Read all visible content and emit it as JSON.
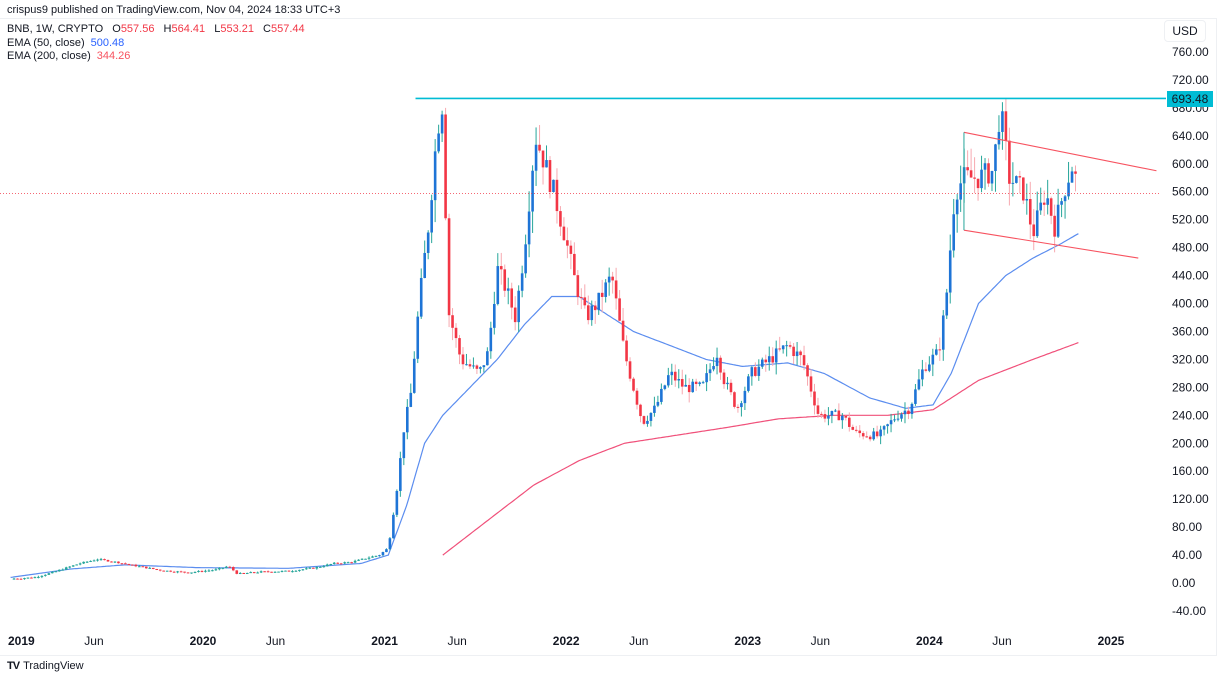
{
  "publisher": "crispus9 published on TradingView.com, Nov 04, 2024 18:33 UTC+3",
  "legend": {
    "symbol": "BNB, 1W, CRYPTO",
    "open_label": "O",
    "open": "557.56",
    "high_label": "H",
    "high": "564.41",
    "low_label": "L",
    "low": "553.21",
    "close_label": "C",
    "close": "557.44",
    "ema50_label": "EMA (50, close)",
    "ema50_value": "500.48",
    "ema200_label": "EMA (200, close)",
    "ema200_value": "344.26"
  },
  "currency": "USD",
  "resistance_badge": "693.48",
  "brand": {
    "logo": "TV",
    "name": "TradingView"
  },
  "colors": {
    "up_body": "#1e74d6",
    "up_body_early": "#26a69a",
    "up_wick": "#26a69a",
    "down_body": "#f23645",
    "down_wick": "#f7a9b0",
    "ema50": "#5b8def",
    "ema200": "#f0507a",
    "resistance": "#00bcd4",
    "channel": "#f7525f",
    "last_price_line": "#f23645"
  },
  "chart_data": {
    "type": "candlestick",
    "title": "BNB, 1W, CRYPTO",
    "xlabel": "",
    "ylabel": "USD",
    "ylim": [
      -60,
      790
    ],
    "y_ticks": [
      "760.00",
      "720.00",
      "680.00",
      "640.00",
      "600.00",
      "560.00",
      "520.00",
      "480.00",
      "440.00",
      "400.00",
      "360.00",
      "320.00",
      "280.00",
      "240.00",
      "200.00",
      "160.00",
      "120.00",
      "80.00",
      "40.00",
      "0.00",
      "-40.00"
    ],
    "x_ticks": [
      {
        "label": "2019",
        "year": true,
        "t": 2019.0
      },
      {
        "label": "Jun",
        "year": false,
        "t": 2019.42
      },
      {
        "label": "2020",
        "year": true,
        "t": 2020.0
      },
      {
        "label": "Jun",
        "year": false,
        "t": 2020.42
      },
      {
        "label": "2021",
        "year": true,
        "t": 2021.0
      },
      {
        "label": "Jun",
        "year": false,
        "t": 2021.42
      },
      {
        "label": "2022",
        "year": true,
        "t": 2022.0
      },
      {
        "label": "Jun",
        "year": false,
        "t": 2022.42
      },
      {
        "label": "2023",
        "year": true,
        "t": 2023.0
      },
      {
        "label": "Jun",
        "year": false,
        "t": 2023.42
      },
      {
        "label": "2024",
        "year": true,
        "t": 2024.0
      },
      {
        "label": "Jun",
        "year": false,
        "t": 2024.42
      },
      {
        "label": "2025",
        "year": true,
        "t": 2025.0
      }
    ],
    "price_path": [
      [
        2018.97,
        6
      ],
      [
        2019.1,
        8
      ],
      [
        2019.2,
        15
      ],
      [
        2019.35,
        28
      ],
      [
        2019.45,
        34
      ],
      [
        2019.55,
        30
      ],
      [
        2019.65,
        25
      ],
      [
        2019.8,
        18
      ],
      [
        2019.95,
        15
      ],
      [
        2020.1,
        19
      ],
      [
        2020.17,
        24
      ],
      [
        2020.22,
        13
      ],
      [
        2020.35,
        16
      ],
      [
        2020.5,
        17
      ],
      [
        2020.65,
        22
      ],
      [
        2020.75,
        28
      ],
      [
        2020.85,
        30
      ],
      [
        2020.95,
        37
      ],
      [
        2021.0,
        40
      ],
      [
        2021.05,
        50
      ],
      [
        2021.1,
        140
      ],
      [
        2021.14,
        230
      ],
      [
        2021.17,
        260
      ],
      [
        2021.22,
        400
      ],
      [
        2021.27,
        510
      ],
      [
        2021.32,
        650
      ],
      [
        2021.35,
        690
      ],
      [
        2021.38,
        390
      ],
      [
        2021.45,
        320
      ],
      [
        2021.55,
        300
      ],
      [
        2021.6,
        330
      ],
      [
        2021.65,
        450
      ],
      [
        2021.7,
        420
      ],
      [
        2021.75,
        380
      ],
      [
        2021.8,
        480
      ],
      [
        2021.86,
        640
      ],
      [
        2021.9,
        610
      ],
      [
        2021.96,
        560
      ],
      [
        2022.02,
        500
      ],
      [
        2022.08,
        430
      ],
      [
        2022.14,
        380
      ],
      [
        2022.2,
        400
      ],
      [
        2022.28,
        440
      ],
      [
        2022.35,
        330
      ],
      [
        2022.45,
        230
      ],
      [
        2022.52,
        250
      ],
      [
        2022.6,
        300
      ],
      [
        2022.68,
        280
      ],
      [
        2022.78,
        280
      ],
      [
        2022.86,
        330
      ],
      [
        2022.9,
        290
      ],
      [
        2022.97,
        250
      ],
      [
        2023.05,
        300
      ],
      [
        2023.15,
        320
      ],
      [
        2023.25,
        340
      ],
      [
        2023.33,
        320
      ],
      [
        2023.42,
        240
      ],
      [
        2023.55,
        240
      ],
      [
        2023.62,
        215
      ],
      [
        2023.75,
        210
      ],
      [
        2023.85,
        240
      ],
      [
        2023.92,
        250
      ],
      [
        2024.0,
        310
      ],
      [
        2024.08,
        330
      ],
      [
        2024.12,
        400
      ],
      [
        2024.17,
        560
      ],
      [
        2024.22,
        580
      ],
      [
        2024.3,
        580
      ],
      [
        2024.38,
        590
      ],
      [
        2024.42,
        680
      ],
      [
        2024.47,
        580
      ],
      [
        2024.55,
        560
      ],
      [
        2024.6,
        500
      ],
      [
        2024.67,
        560
      ],
      [
        2024.72,
        510
      ],
      [
        2024.78,
        570
      ],
      [
        2024.82,
        600
      ],
      [
        2024.85,
        557
      ]
    ],
    "ema50_path": [
      [
        2018.97,
        8
      ],
      [
        2019.3,
        20
      ],
      [
        2019.6,
        26
      ],
      [
        2020.0,
        22
      ],
      [
        2020.5,
        21
      ],
      [
        2020.9,
        28
      ],
      [
        2021.05,
        40
      ],
      [
        2021.15,
        110
      ],
      [
        2021.25,
        200
      ],
      [
        2021.35,
        240
      ],
      [
        2021.5,
        280
      ],
      [
        2021.65,
        320
      ],
      [
        2021.8,
        370
      ],
      [
        2021.95,
        410
      ],
      [
        2022.1,
        410
      ],
      [
        2022.25,
        385
      ],
      [
        2022.4,
        360
      ],
      [
        2022.6,
        340
      ],
      [
        2022.8,
        320
      ],
      [
        2023.0,
        310
      ],
      [
        2023.25,
        315
      ],
      [
        2023.45,
        300
      ],
      [
        2023.7,
        265
      ],
      [
        2023.9,
        250
      ],
      [
        2024.05,
        255
      ],
      [
        2024.15,
        300
      ],
      [
        2024.3,
        400
      ],
      [
        2024.45,
        440
      ],
      [
        2024.6,
        465
      ],
      [
        2024.75,
        485
      ],
      [
        2024.85,
        500
      ]
    ],
    "ema200_path": [
      [
        2021.35,
        40
      ],
      [
        2021.6,
        90
      ],
      [
        2021.85,
        140
      ],
      [
        2022.1,
        175
      ],
      [
        2022.35,
        200
      ],
      [
        2022.6,
        210
      ],
      [
        2022.9,
        222
      ],
      [
        2023.2,
        235
      ],
      [
        2023.5,
        240
      ],
      [
        2023.8,
        240
      ],
      [
        2024.05,
        248
      ],
      [
        2024.3,
        290
      ],
      [
        2024.6,
        320
      ],
      [
        2024.85,
        344
      ]
    ],
    "resistance": {
      "value": 693.48,
      "t_start": 2021.2
    },
    "channel": {
      "upper": [
        [
          2024.22,
          645
        ],
        [
          2025.28,
          590
        ]
      ],
      "lower": [
        [
          2024.22,
          505
        ],
        [
          2025.18,
          465
        ]
      ]
    },
    "last_price": 557.44
  }
}
